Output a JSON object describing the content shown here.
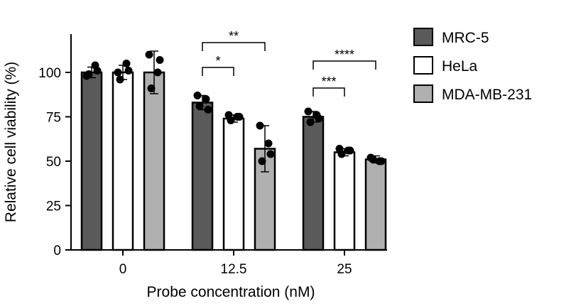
{
  "chart_data": {
    "type": "bar",
    "title": "",
    "xlabel": "Probe concentration (nM)",
    "ylabel": "Relative cell viability (%)",
    "ylim": [
      0,
      125
    ],
    "yticks": [
      "0",
      "25",
      "50",
      "75",
      "100"
    ],
    "categories": [
      "0",
      "12.5",
      "25"
    ],
    "legend_position": "right",
    "grid": false,
    "series": [
      {
        "name": "MRC-5",
        "color": "#5a5a5a",
        "values": [
          100,
          83,
          75
        ],
        "err": [
          3,
          4,
          3
        ],
        "points": [
          [
            98,
            104,
            99,
            101
          ],
          [
            87,
            85,
            81,
            79
          ],
          [
            78,
            76,
            72,
            74
          ]
        ]
      },
      {
        "name": "HeLa",
        "color": "#ffffff",
        "values": [
          100,
          74,
          55
        ],
        "err": [
          4,
          2,
          2
        ],
        "points": [
          [
            100,
            105,
            96,
            101
          ],
          [
            76,
            75,
            73,
            75
          ],
          [
            57,
            56,
            54,
            56
          ]
        ]
      },
      {
        "name": "MDA-MB-231",
        "color": "#b0b0b0",
        "values": [
          100,
          57,
          51
        ],
        "err": [
          12,
          13,
          2
        ],
        "points": [
          [
            110,
            100,
            91,
            107
          ],
          [
            70,
            60,
            50,
            54
          ],
          [
            52,
            50,
            51,
            50
          ]
        ]
      }
    ],
    "significance": [
      {
        "group": 1,
        "from": 0,
        "to": 1,
        "label": "*"
      },
      {
        "group": 1,
        "from": 0,
        "to": 2,
        "label": "**"
      },
      {
        "group": 2,
        "from": 0,
        "to": 1,
        "label": "***"
      },
      {
        "group": 2,
        "from": 0,
        "to": 2,
        "label": "****"
      }
    ]
  }
}
